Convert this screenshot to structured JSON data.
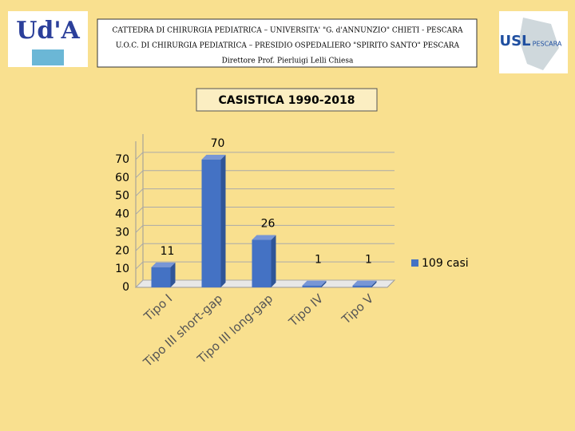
{
  "header": {
    "lines": [
      "CATTEDRA DI CHIRURGIA PEDIATRICA – UNIVERSITA' \"G. d'ANNUNZIO\" CHIETI - PESCARA",
      "U.O.C. DI CHIRURGIA PEDIATRICA – PRESIDIO OSPEDALIERO \"SPIRITO SANTO\" PESCARA",
      "Direttore Prof. Pierluigi Lelli Chiesa"
    ],
    "logo_left": "Ud'A",
    "logo_right": "USL",
    "logo_right_sub": "PESCARA"
  },
  "chart_data": {
    "type": "bar3d",
    "title": "CASISTICA  1990-2018",
    "categories": [
      "Tipo I",
      "Tipo III short-gap",
      "Tipo III long-gap",
      "Tipo IV",
      "Tipo V"
    ],
    "series": [
      {
        "name": "109 casi",
        "color": "#4472c4",
        "values": [
          11,
          70,
          26,
          1,
          1
        ]
      }
    ],
    "ylim": [
      0,
      80
    ],
    "yticks": [
      0,
      10,
      20,
      30,
      40,
      50,
      60,
      70
    ],
    "grid": true,
    "legend": "right"
  }
}
